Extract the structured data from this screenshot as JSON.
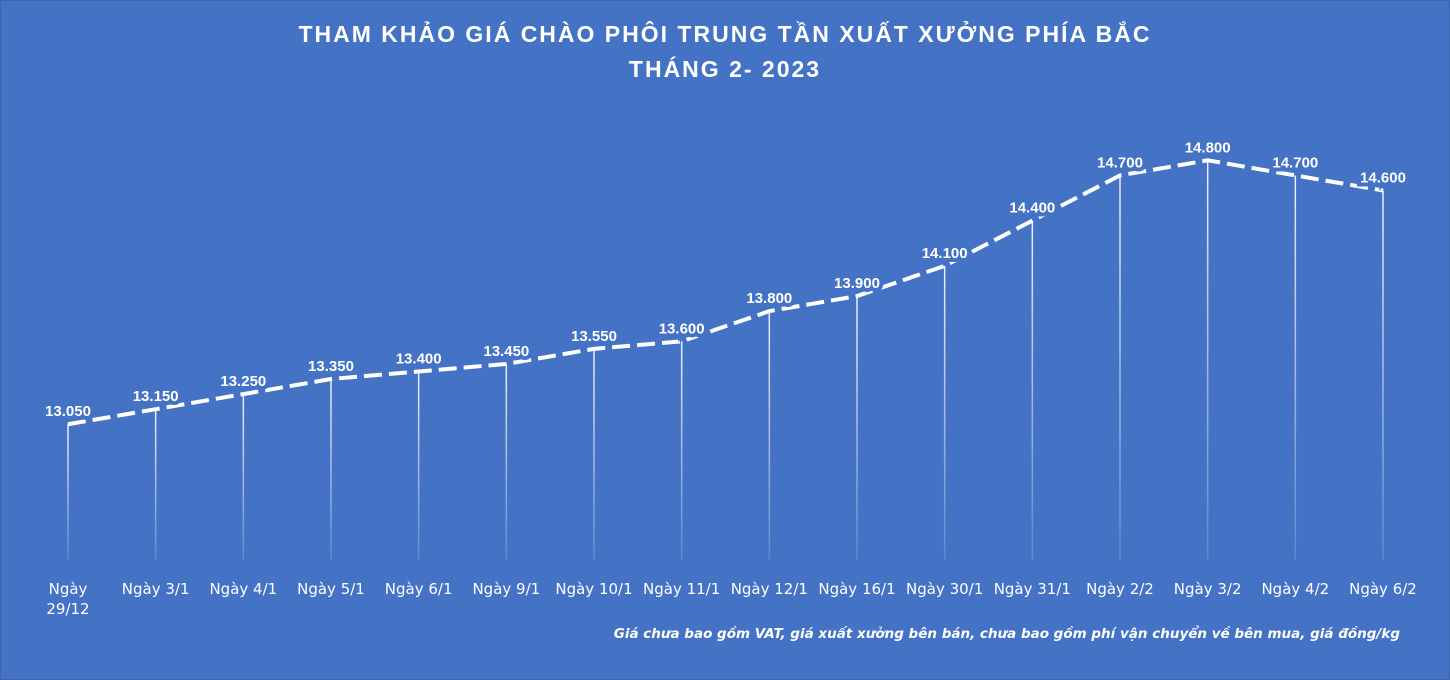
{
  "chart_data": {
    "type": "line",
    "title": "THAM KHẢO GIÁ CHÀO PHÔI TRUNG TẦN XUẤT XƯỞNG PHÍA BẮC",
    "subtitle": "THÁNG 2- 2023",
    "note": "Giá chưa bao gồm VAT, giá xuất xưởng bên bán, chưa bao gồm phí vận chuyển về bên mua, giá đồng/kg",
    "categories": [
      "Ngày 29/12",
      "Ngày 3/1",
      "Ngày 4/1",
      "Ngày 5/1",
      "Ngày 6/1",
      "Ngày 9/1",
      "Ngày 10/1",
      "Ngày 11/1",
      "Ngày 12/1",
      "Ngày 16/1",
      "Ngày 30/1",
      "Ngày 31/1",
      "Ngày 2/2",
      "Ngày 3/2",
      "Ngày 4/2",
      "Ngày 6/2"
    ],
    "values": [
      13050,
      13150,
      13250,
      13350,
      13400,
      13450,
      13550,
      13600,
      13800,
      13900,
      14100,
      14400,
      14700,
      14800,
      14700,
      14600
    ],
    "value_labels": [
      "13.050",
      "13.150",
      "13.250",
      "13.350",
      "13.400",
      "13.450",
      "13.550",
      "13.600",
      "13.800",
      "13.900",
      "14.100",
      "14.400",
      "14.700",
      "14.800",
      "14.700",
      "14.600"
    ],
    "color": "#ffffff",
    "ylim": [
      12150,
      15200
    ]
  }
}
